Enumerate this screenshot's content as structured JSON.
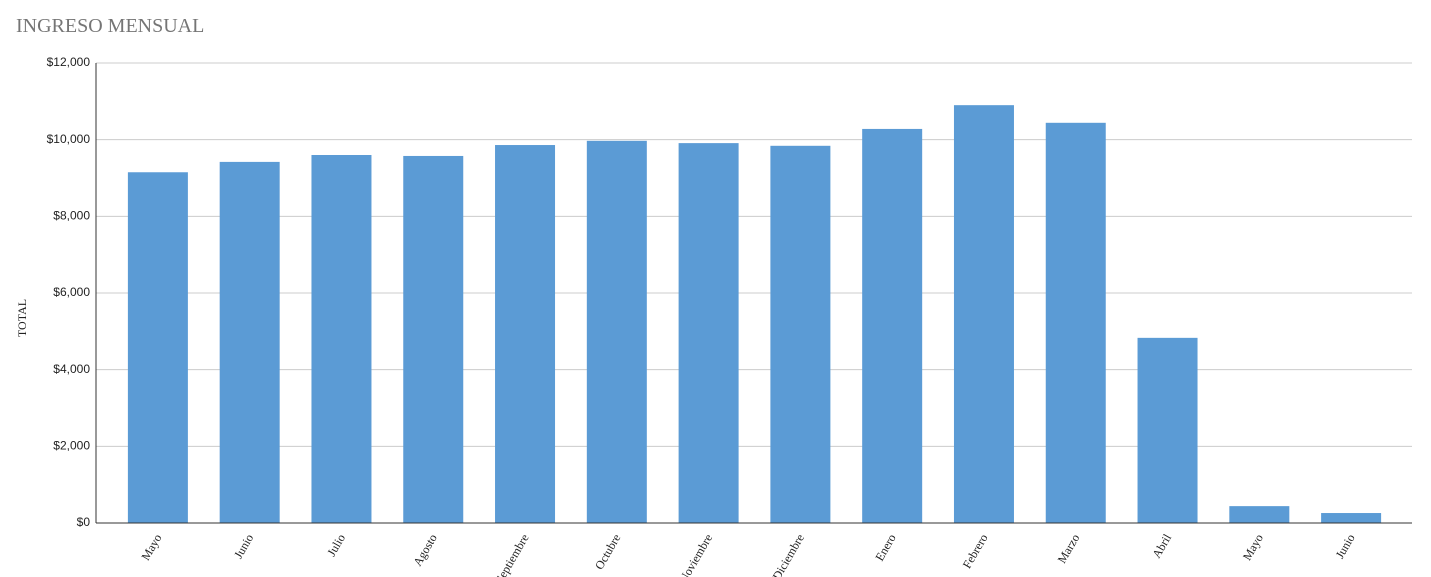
{
  "chart_data": {
    "type": "bar",
    "title": "INGRESO MENSUAL",
    "y_label": "TOTAL",
    "categories": [
      "Mayo",
      "Junio",
      "Julio",
      "Agosto",
      "Septiembre",
      "Octubre",
      "Noviembre",
      "Diciembre",
      "Enero",
      "Febrero",
      "Marzo",
      "Abril",
      "Mayo",
      "Junio"
    ],
    "values": [
      9150,
      9420,
      9600,
      9575,
      9860,
      9970,
      9910,
      9840,
      10280,
      10900,
      10440,
      4830,
      440,
      260
    ],
    "color": "#5b9bd5",
    "ylim": [
      0,
      12000
    ],
    "yticks": [
      {
        "value": 0,
        "label": "$0"
      },
      {
        "value": 2000,
        "label": "$2,000"
      },
      {
        "value": 4000,
        "label": "$4,000"
      },
      {
        "value": 6000,
        "label": "$6,000"
      },
      {
        "value": 8000,
        "label": "$8,000"
      },
      {
        "value": 10000,
        "label": "$10,000"
      },
      {
        "value": 12000,
        "label": "$12,000"
      }
    ],
    "grid": true
  }
}
